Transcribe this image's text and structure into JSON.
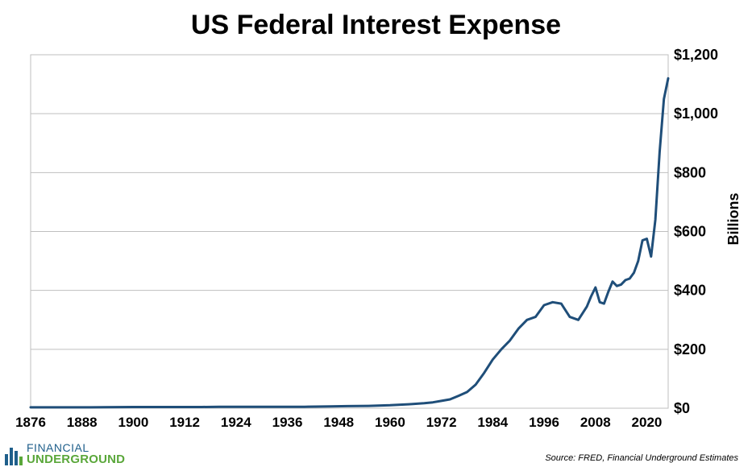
{
  "chart_data": {
    "type": "line",
    "title": "US Federal Interest Expense",
    "ylabel": "Billions",
    "xlabel": "",
    "xlim": [
      1876,
      2025
    ],
    "ylim": [
      0,
      1200
    ],
    "x_ticks": [
      "1876",
      "1888",
      "1900",
      "1912",
      "1924",
      "1936",
      "1948",
      "1960",
      "1972",
      "1984",
      "1996",
      "2008",
      "2020"
    ],
    "y_ticks": [
      "$0",
      "$200",
      "$400",
      "$600",
      "$800",
      "$1,000",
      "$1,200"
    ],
    "y_axis_side": "right",
    "grid": "horizontal",
    "line_color": "#1f4e79",
    "series": [
      {
        "x": [
          1876,
          1890,
          1900,
          1916,
          1920,
          1940,
          1946,
          1950,
          1955,
          1960,
          1965,
          1968,
          1970,
          1972,
          1974,
          1976,
          1978,
          1980,
          1982,
          1984,
          1986,
          1988,
          1990,
          1992,
          1994,
          1996,
          1998,
          2000,
          2002,
          2004,
          2006,
          2007,
          2008,
          2009,
          2010,
          2011,
          2012,
          2013,
          2014,
          2015,
          2016,
          2017,
          2018,
          2019,
          2020,
          2021,
          2022,
          2023,
          2024,
          2025
        ],
        "y": [
          3,
          3,
          4,
          4,
          5,
          5,
          6,
          7,
          8,
          10,
          14,
          17,
          20,
          25,
          30,
          42,
          55,
          80,
          120,
          165,
          200,
          230,
          270,
          300,
          310,
          350,
          360,
          355,
          310,
          300,
          345,
          380,
          410,
          360,
          355,
          395,
          430,
          415,
          420,
          435,
          440,
          460,
          500,
          570,
          575,
          515,
          640,
          870,
          1050,
          1120
        ]
      }
    ]
  },
  "source": "Source: FRED, Financial Underground Estimates",
  "logo": {
    "line1": "FINANCIAL",
    "line2": "UNDERGROUND"
  },
  "colors": {
    "logo_blue": "#1f5f8b",
    "logo_green": "#5aa73a",
    "grid": "#bfbfbf"
  }
}
